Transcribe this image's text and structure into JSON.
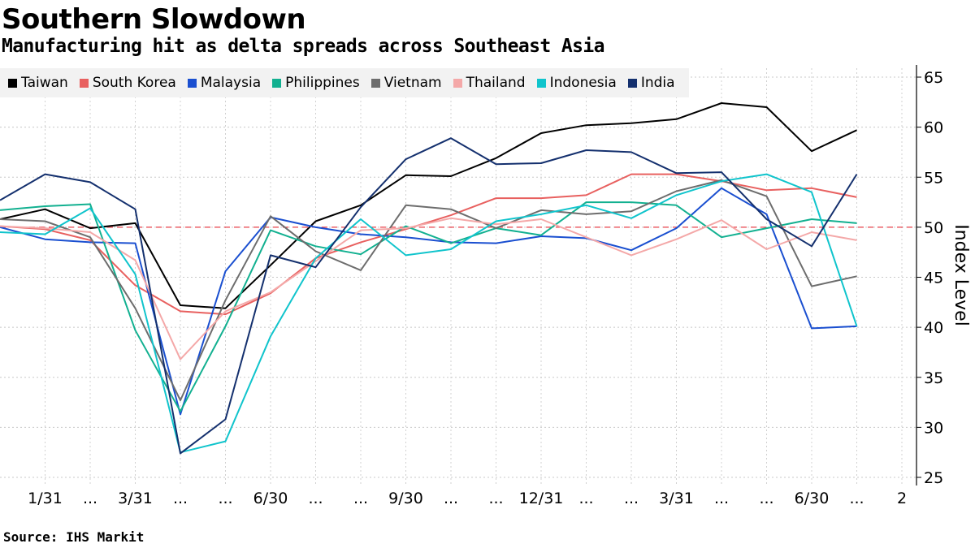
{
  "header": {
    "title": "Southern Slowdown",
    "subtitle": "Manufacturing hit as delta spreads across Southeast Asia",
    "source": "Source: IHS Markit"
  },
  "chart_data": {
    "type": "line",
    "title": "Southern Slowdown",
    "subtitle": "Manufacturing hit as delta spreads across Southeast Asia",
    "ylabel": "Index Level",
    "xlabel": "",
    "ylim": [
      25,
      66
    ],
    "yticks": [
      25,
      30,
      35,
      40,
      45,
      50,
      55,
      60,
      65
    ],
    "reference_line": 50,
    "reference_color": "#e8404a",
    "grid": true,
    "legend_position": "top-left",
    "x_tick_labels": [
      "1/31",
      "...",
      "3/31",
      "...",
      "...",
      "6/30",
      "...",
      "...",
      "9/30",
      "...",
      "...",
      "12/31",
      "...",
      "...",
      "3/31",
      "...",
      "...",
      "6/30",
      "...",
      "2"
    ],
    "x": [
      "Dec 2019",
      "Jan 2020",
      "Feb 2020",
      "Mar 2020",
      "Apr 2020",
      "May 2020",
      "Jun 2020",
      "Jul 2020",
      "Aug 2020",
      "Sep 2020",
      "Oct 2020",
      "Nov 2020",
      "Dec 2020",
      "Jan 2021",
      "Feb 2021",
      "Mar 2021",
      "Apr 2021",
      "May 2021",
      "Jun 2021",
      "Jul 2021"
    ],
    "series": [
      {
        "name": "Taiwan",
        "color": "#000000",
        "values": [
          50.8,
          51.8,
          49.9,
          50.4,
          42.2,
          41.9,
          46.2,
          50.6,
          52.2,
          55.2,
          55.1,
          56.9,
          59.4,
          60.2,
          60.4,
          60.8,
          62.4,
          62.0,
          57.6,
          59.7
        ]
      },
      {
        "name": "South Korea",
        "color": "#e8605f",
        "values": [
          50.1,
          49.8,
          48.7,
          44.2,
          41.6,
          41.3,
          43.4,
          46.9,
          48.5,
          49.8,
          51.2,
          52.9,
          52.9,
          53.2,
          55.3,
          55.3,
          54.6,
          53.7,
          53.9,
          53.0
        ]
      },
      {
        "name": "Malaysia",
        "color": "#1a4fd0",
        "values": [
          50.0,
          48.8,
          48.5,
          48.4,
          31.3,
          45.6,
          51.0,
          50.0,
          49.3,
          49.0,
          48.5,
          48.4,
          49.1,
          48.9,
          47.7,
          49.9,
          53.9,
          51.3,
          39.9,
          40.1
        ]
      },
      {
        "name": "Philippines",
        "color": "#12b090",
        "values": [
          51.7,
          52.1,
          52.3,
          39.7,
          31.6,
          40.1,
          49.7,
          48.1,
          47.3,
          50.1,
          48.4,
          49.9,
          49.2,
          52.5,
          52.5,
          52.2,
          49.0,
          49.9,
          50.8,
          50.4
        ]
      },
      {
        "name": "Vietnam",
        "color": "#6d6d6d",
        "values": [
          50.8,
          50.6,
          49.0,
          41.9,
          32.7,
          42.7,
          51.1,
          47.6,
          45.7,
          52.2,
          51.8,
          49.9,
          51.7,
          51.3,
          51.6,
          53.6,
          54.7,
          53.1,
          44.1,
          45.1
        ]
      },
      {
        "name": "Thailand",
        "color": "#f4a8a8",
        "values": [
          50.1,
          49.9,
          49.5,
          46.7,
          36.8,
          41.6,
          43.5,
          46.6,
          49.7,
          49.9,
          50.9,
          50.3,
          50.8,
          49.0,
          47.2,
          48.8,
          50.7,
          47.8,
          49.5,
          48.7
        ]
      },
      {
        "name": "Indonesia",
        "color": "#10c4cc",
        "values": [
          49.5,
          49.3,
          51.9,
          45.3,
          27.5,
          28.6,
          39.1,
          46.9,
          50.8,
          47.2,
          47.8,
          50.6,
          51.3,
          52.2,
          50.9,
          53.2,
          54.6,
          55.3,
          53.5,
          40.1
        ]
      },
      {
        "name": "India",
        "color": "#14306e",
        "values": [
          52.7,
          55.3,
          54.5,
          51.8,
          27.4,
          30.8,
          47.2,
          46.0,
          52.0,
          56.8,
          58.9,
          56.3,
          56.4,
          57.7,
          57.5,
          55.4,
          55.5,
          50.8,
          48.1,
          55.3
        ]
      }
    ]
  }
}
